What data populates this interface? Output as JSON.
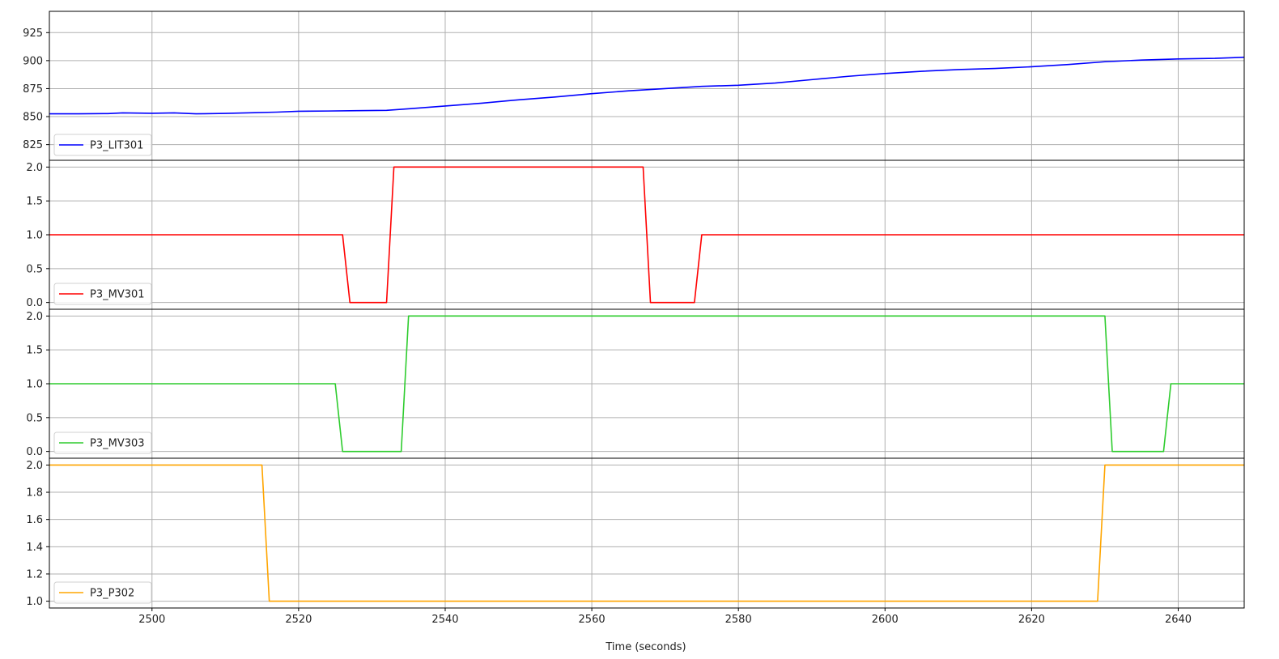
{
  "chart_data": {
    "type": "line",
    "xlabel": "Time (seconds)",
    "xlim": [
      2486,
      2649
    ],
    "xticks": [
      2500,
      2520,
      2540,
      2560,
      2580,
      2600,
      2620,
      2640
    ],
    "grid": true,
    "legend_placement": "lower-left",
    "panels": [
      {
        "series": [
          {
            "name": "P3_LIT301",
            "color": "#0000ff",
            "x": [
              2486,
              2490,
              2494,
              2496,
              2500,
              2503,
              2506,
              2510,
              2514,
              2517,
              2520,
              2524,
              2528,
              2532,
              2536,
              2540,
              2545,
              2550,
              2555,
              2560,
              2565,
              2570,
              2575,
              2580,
              2585,
              2590,
              2595,
              2600,
              2605,
              2610,
              2615,
              2620,
              2625,
              2630,
              2635,
              2640,
              2645,
              2649
            ],
            "y": [
              852.5,
              852.5,
              852.7,
              853.3,
              853.0,
              853.3,
              852.5,
              852.9,
              853.5,
              854.0,
              854.8,
              855.0,
              855.3,
              855.6,
              857.5,
              859.5,
              862.0,
              865.0,
              867.5,
              870.5,
              873.0,
              875.0,
              877.0,
              878.0,
              880.0,
              883.0,
              886.0,
              888.5,
              890.5,
              892.0,
              893.0,
              894.5,
              896.5,
              899.0,
              900.5,
              901.5,
              902.0,
              903.0
            ]
          }
        ],
        "ylim": [
          811,
          944
        ],
        "yticks": [
          825,
          850,
          875,
          900,
          925
        ]
      },
      {
        "series": [
          {
            "name": "P3_MV301",
            "color": "#ff0000",
            "x": [
              2486,
              2526,
              2527,
              2532,
              2533,
              2567,
              2568,
              2574,
              2575,
              2649
            ],
            "y": [
              1,
              1,
              0,
              0,
              2,
              2,
              0,
              0,
              1,
              1
            ]
          }
        ],
        "ylim": [
          -0.1,
          2.1
        ],
        "yticks": [
          0.0,
          0.5,
          1.0,
          1.5,
          2.0
        ]
      },
      {
        "series": [
          {
            "name": "P3_MV303",
            "color": "#2ecc2e",
            "x": [
              2486,
              2525,
              2526,
              2534,
              2535,
              2630,
              2631,
              2638,
              2639,
              2649
            ],
            "y": [
              1,
              1,
              0,
              0,
              2,
              2,
              0,
              0,
              1,
              1
            ]
          }
        ],
        "ylim": [
          -0.1,
          2.1
        ],
        "yticks": [
          0.0,
          0.5,
          1.0,
          1.5,
          2.0
        ]
      },
      {
        "series": [
          {
            "name": "P3_P302",
            "color": "#ffa500",
            "x": [
              2486,
              2515,
              2516,
              2629,
              2630,
              2649
            ],
            "y": [
              2,
              2,
              1,
              1,
              2,
              2
            ]
          }
        ],
        "ylim": [
          0.95,
          2.05
        ],
        "yticks": [
          1.0,
          1.2,
          1.4,
          1.6,
          1.8,
          2.0
        ]
      }
    ]
  }
}
